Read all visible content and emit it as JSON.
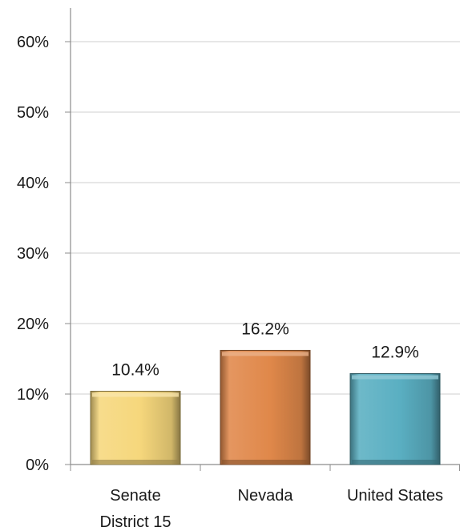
{
  "chart_data": {
    "type": "bar",
    "categories": [
      "Senate District 15",
      "Nevada",
      "United States"
    ],
    "category_lines": [
      [
        "Senate",
        "District 15"
      ],
      [
        "Nevada"
      ],
      [
        "United States"
      ]
    ],
    "values": [
      10.4,
      16.2,
      12.9
    ],
    "value_labels": [
      "10.4%",
      "16.2%",
      "12.9%"
    ],
    "colors": [
      "#F6D77C",
      "#E0884A",
      "#5AAFC2"
    ],
    "ylim": [
      0,
      60
    ],
    "yticks": [
      0,
      10,
      20,
      30,
      40,
      50,
      60
    ],
    "ytick_labels": [
      "0%",
      "10%",
      "20%",
      "30%",
      "40%",
      "50%",
      "60%"
    ],
    "grid": true,
    "title": "",
    "xlabel": "",
    "ylabel": ""
  }
}
